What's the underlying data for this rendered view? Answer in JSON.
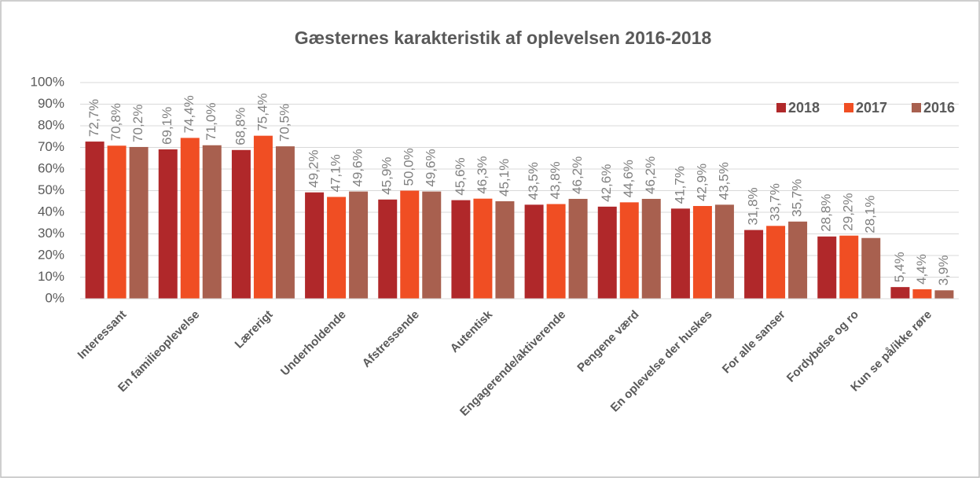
{
  "chart_data": {
    "type": "bar",
    "title": "Gæsternes karakteristik af oplevelsen 2016-2018",
    "categories": [
      "Interessant",
      "En familieoplevelse",
      "Lærerigt",
      "Underholdende",
      "Afstressende",
      "Autentisk",
      "Engagerende/aktiverende",
      "Pengene værd",
      "En oplevelse der huskes",
      "For alle sanser",
      "Fordybelse og ro",
      "Kun se på/ikke røre"
    ],
    "series": [
      {
        "name": "2018",
        "color": "#b0282a",
        "values": [
          72.7,
          69.1,
          68.8,
          49.2,
          45.9,
          45.6,
          43.5,
          42.6,
          41.7,
          31.8,
          28.8,
          5.4
        ],
        "value_labels": [
          "72,7%",
          "69,1%",
          "68,8%",
          "49,2%",
          "45,9%",
          "45,6%",
          "43,5%",
          "42,6%",
          "41,7%",
          "31,8%",
          "28,8%",
          "5,4%"
        ]
      },
      {
        "name": "2017",
        "color": "#f04e23",
        "values": [
          70.8,
          74.4,
          75.4,
          47.1,
          50.0,
          46.3,
          43.8,
          44.6,
          42.9,
          33.7,
          29.2,
          4.4
        ],
        "value_labels": [
          "70,8%",
          "74,4%",
          "75,4%",
          "47,1%",
          "50,0%",
          "46,3%",
          "43,8%",
          "44,6%",
          "42,9%",
          "33,7%",
          "29,2%",
          "4,4%"
        ]
      },
      {
        "name": "2016",
        "color": "#a8604f",
        "values": [
          70.2,
          71.0,
          70.5,
          49.6,
          49.6,
          45.1,
          46.2,
          46.2,
          43.5,
          35.7,
          28.1,
          3.9
        ],
        "value_labels": [
          "70,2%",
          "71,0%",
          "70,5%",
          "49,6%",
          "49,6%",
          "45,1%",
          "46,2%",
          "46,2%",
          "43,5%",
          "35,7%",
          "28,1%",
          "3,9%"
        ]
      }
    ],
    "ylim": [
      0,
      100
    ],
    "yticks": [
      {
        "value": 0,
        "label": "0%"
      },
      {
        "value": 10,
        "label": "10%"
      },
      {
        "value": 20,
        "label": "20%"
      },
      {
        "value": 30,
        "label": "30%"
      },
      {
        "value": 40,
        "label": "40%"
      },
      {
        "value": 50,
        "label": "50%"
      },
      {
        "value": 60,
        "label": "60%"
      },
      {
        "value": 70,
        "label": "70%"
      },
      {
        "value": 80,
        "label": "80%"
      },
      {
        "value": 90,
        "label": "90%"
      },
      {
        "value": 100,
        "label": "100%"
      }
    ],
    "grid": true,
    "legend": "top-right"
  }
}
